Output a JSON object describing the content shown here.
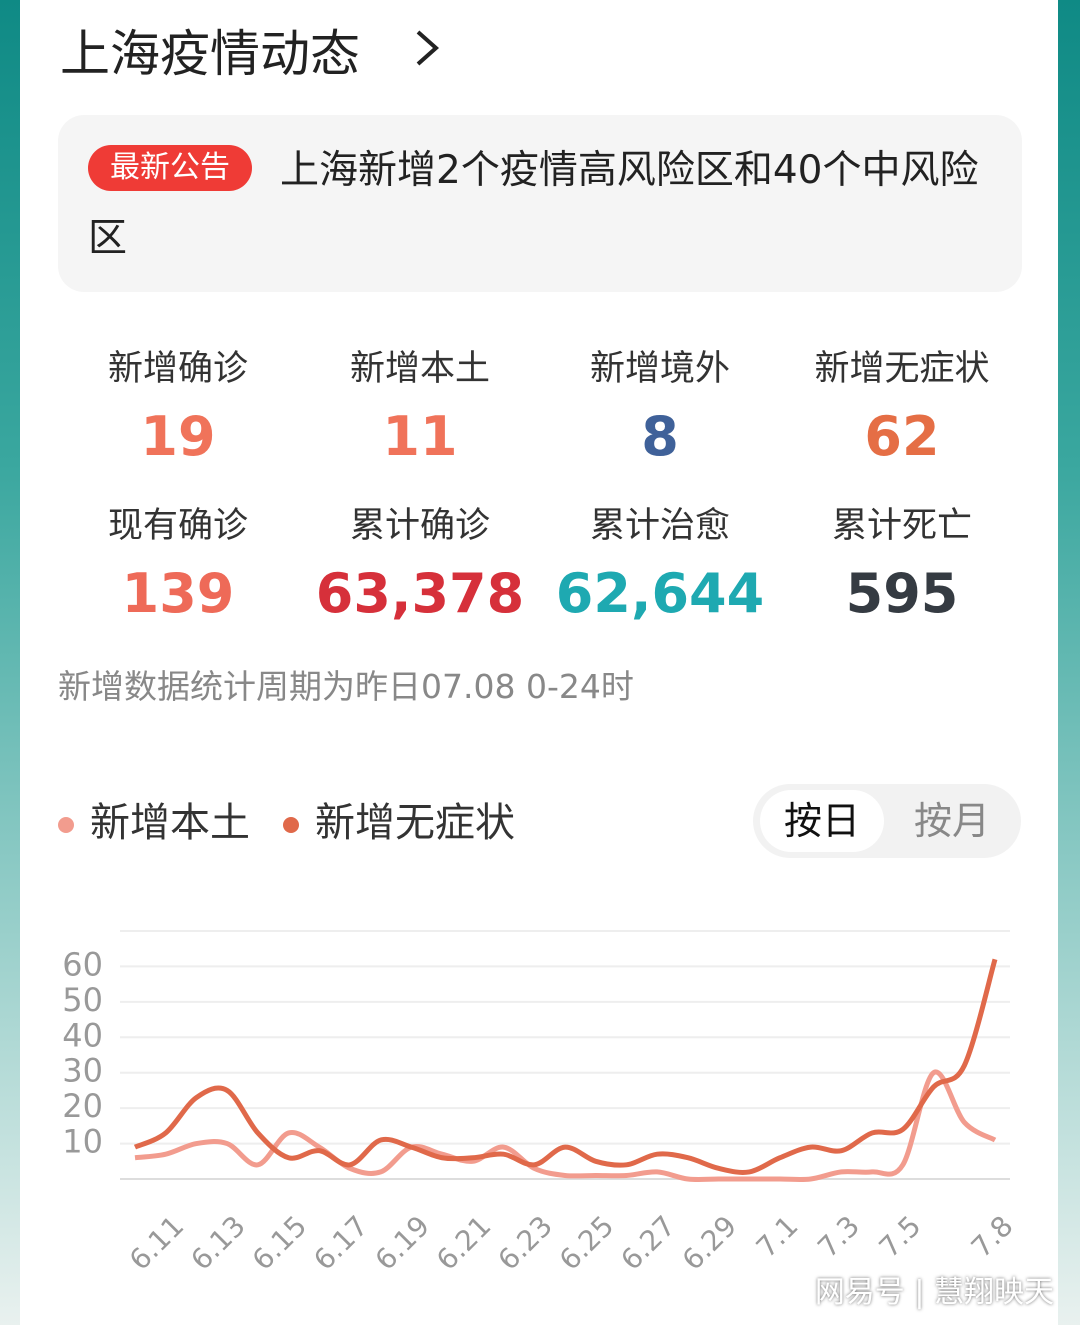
{
  "header": {
    "title": "上海疫情动态"
  },
  "notice": {
    "tag": "最新公告",
    "text": "上海新增2个疫情高风险区和40个中风险区"
  },
  "stats": [
    {
      "label": "新增确诊",
      "value": "19",
      "color": "#f0735a"
    },
    {
      "label": "新增本土",
      "value": "11",
      "color": "#f0735a"
    },
    {
      "label": "新增境外",
      "value": "8",
      "color": "#3f6199"
    },
    {
      "label": "新增无症状",
      "value": "62",
      "color": "#e56e45"
    },
    {
      "label": "现有确诊",
      "value": "139",
      "color": "#ee6a58"
    },
    {
      "label": "累计确诊",
      "value": "63,378",
      "color": "#d6303a"
    },
    {
      "label": "累计治愈",
      "value": "62,644",
      "color": "#1ea9b1"
    },
    {
      "label": "累计死亡",
      "value": "595",
      "color": "#353b42"
    }
  ],
  "footnote": "新增数据统计周期为昨日07.08 0-24时",
  "toggle": [
    "按日",
    "按月"
  ],
  "watermark": "网易号 | 慧翔映天",
  "chart_data": {
    "type": "line",
    "categories": [
      null,
      "6.11",
      null,
      "6.13",
      null,
      "6.15",
      null,
      "6.17",
      null,
      "6.19",
      null,
      "6.21",
      null,
      "6.23",
      null,
      "6.25",
      null,
      "6.27",
      null,
      "6.29",
      null,
      "7.1",
      null,
      "7.3",
      null,
      "7.5",
      null,
      null,
      "7.8"
    ],
    "series": [
      {
        "name": "新增本土",
        "color": "#f29c8e",
        "values": [
          6,
          7,
          10,
          10,
          4,
          13,
          9,
          3,
          2,
          9,
          7,
          5,
          9,
          3,
          1,
          1,
          1,
          2,
          0,
          0,
          0,
          0,
          0,
          2,
          2,
          4,
          30,
          16,
          11
        ]
      },
      {
        "name": "新增无症状",
        "color": "#e0694a",
        "values": [
          9,
          13,
          23,
          25,
          13,
          6,
          8,
          4,
          11,
          9,
          6,
          6,
          7,
          4,
          9,
          5,
          4,
          7,
          6,
          3,
          2,
          6,
          9,
          8,
          13,
          14,
          26,
          32,
          62
        ]
      }
    ],
    "ylim": [
      0,
      70
    ],
    "yticks": [
      10,
      20,
      30,
      40,
      50,
      60
    ],
    "grid": true
  }
}
